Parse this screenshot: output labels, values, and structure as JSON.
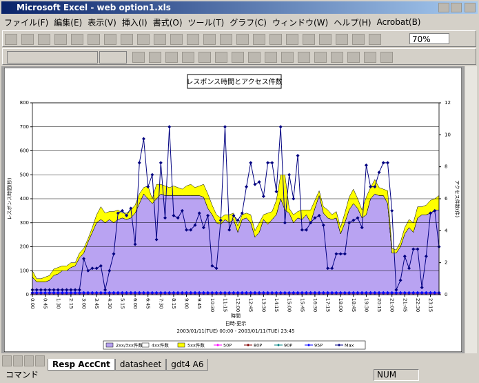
{
  "window": {
    "title": "Microsoft Excel - web option1.xls"
  },
  "menu": [
    "ファイル(F)",
    "編集(E)",
    "表示(V)",
    "挿入(I)",
    "書式(O)",
    "ツール(T)",
    "グラフ(C)",
    "ウィンドウ(W)",
    "ヘルプ(H)",
    "Acrobat(B)"
  ],
  "toolbar": {
    "zoom": "70%"
  },
  "sheet_tabs": [
    "Resp AccCnt",
    "datasheet",
    "gdt4 A6"
  ],
  "status_bar": {
    "mode": "コマンド",
    "num": "NUM"
  },
  "chart_data": {
    "type": "combo",
    "title": "レスポンス時間とアクセス件数",
    "x_label": "時間",
    "subtitle_1": "日時-更示",
    "subtitle_2": "2003/01/11(TUE) 00:00 - 2003/01/11(TUE) 23:45",
    "y_label": "レスポンス時間(秒)",
    "y2_label": "アクセス件数(件)",
    "ylim": [
      0,
      800
    ],
    "yticks": [
      0,
      100,
      200,
      300,
      400,
      500,
      600,
      700,
      800
    ],
    "y2lim": [
      0,
      12
    ],
    "y2ticks": [
      0,
      2,
      4,
      6,
      8,
      10,
      12
    ],
    "grid": true,
    "legend": "bottom",
    "categories": [
      "0:00",
      null,
      null,
      "0:45",
      null,
      null,
      "1:30",
      null,
      null,
      "2:15",
      null,
      null,
      "3:00",
      null,
      null,
      "3:45",
      null,
      null,
      "4:30",
      null,
      null,
      "5:15",
      null,
      null,
      "6:00",
      null,
      null,
      "6:45",
      null,
      null,
      "7:30",
      null,
      null,
      "8:15",
      null,
      null,
      "9:00",
      null,
      null,
      "9:45",
      null,
      null,
      "10:30",
      null,
      null,
      "11:15",
      null,
      null,
      "12:00",
      null,
      null,
      "12:45",
      null,
      null,
      "13:30",
      null,
      null,
      "14:15",
      null,
      null,
      "15:00",
      null,
      null,
      "15:45",
      null,
      null,
      "16:30",
      null,
      null,
      "17:15",
      null,
      null,
      "18:00",
      null,
      null,
      "18:45",
      null,
      null,
      "19:30",
      null,
      null,
      "20:15",
      null,
      null,
      "21:00",
      null,
      null,
      "21:45",
      null,
      null,
      "22:30",
      null,
      null,
      "23:15",
      null,
      null
    ],
    "series": [
      {
        "name": "2xx/3xx件数",
        "type": "area",
        "axis": "y2",
        "color": "#b9a3f2",
        "values": [
          1.1,
          0.8,
          0.8,
          0.8,
          0.9,
          1.2,
          1.3,
          1.5,
          1.5,
          1.7,
          1.8,
          2.3,
          2.6,
          3.3,
          3.9,
          4.5,
          4.7,
          4.5,
          4.7,
          4.5,
          4.7,
          4.8,
          4.7,
          4.8,
          5.1,
          5.7,
          6.3,
          6.0,
          5.7,
          6.0,
          6.3,
          6.2,
          6.2,
          6.2,
          6.2,
          6.2,
          6.2,
          6.2,
          6.2,
          6.2,
          6.1,
          5.4,
          5.0,
          4.5,
          4.4,
          4.7,
          4.5,
          4.7,
          3.9,
          4.7,
          4.8,
          4.5,
          3.6,
          3.9,
          4.7,
          4.4,
          4.7,
          5.0,
          6.0,
          5.3,
          5.1,
          4.5,
          4.8,
          4.7,
          5.0,
          4.5,
          5.4,
          6.2,
          5.1,
          4.8,
          4.7,
          4.8,
          3.8,
          4.5,
          5.3,
          5.7,
          5.4,
          4.8,
          5.0,
          6.0,
          6.3,
          6.2,
          6.2,
          5.7,
          2.6,
          2.6,
          3.0,
          3.8,
          4.2,
          3.9,
          4.8,
          5.0,
          5.0,
          5.1,
          5.3,
          5.3
        ]
      },
      {
        "name": "4xx件数",
        "type": "area",
        "axis": "y2",
        "color": "#ffffff",
        "values": [
          0,
          0,
          0,
          0,
          0,
          0,
          0,
          0,
          0,
          0,
          0,
          0,
          0,
          0,
          0,
          0,
          0,
          0,
          0,
          0,
          0,
          0,
          0,
          0,
          0,
          0,
          0,
          0,
          0,
          0,
          0,
          0,
          0,
          0,
          0,
          0,
          0,
          0,
          0,
          0,
          0,
          0,
          0,
          0,
          0,
          0,
          0,
          0,
          0,
          0,
          0,
          0,
          0,
          0,
          0,
          0,
          0,
          0,
          0,
          0,
          0,
          0,
          0,
          0,
          0,
          0,
          0,
          0,
          0,
          0,
          0,
          0,
          0,
          0,
          0,
          0,
          0,
          0,
          0,
          0,
          0,
          0,
          0,
          0,
          0,
          0,
          0,
          0,
          0,
          0,
          0,
          0,
          0,
          0,
          0,
          0
        ]
      },
      {
        "name": "5xx件数",
        "type": "area",
        "axis": "y2",
        "color": "#ffff00",
        "values": [
          0.4,
          0.2,
          0.2,
          0.3,
          0.3,
          0.4,
          0.4,
          0.3,
          0.3,
          0.3,
          0.2,
          0.3,
          0.3,
          0.2,
          0.3,
          0.5,
          0.8,
          0.6,
          0.5,
          0.7,
          0.6,
          0.3,
          0.4,
          0.5,
          0.5,
          0.6,
          0.4,
          0.8,
          0.3,
          0.9,
          0.6,
          0.6,
          0.5,
          0.6,
          0.5,
          0.4,
          0.6,
          0.7,
          0.5,
          0.6,
          0.8,
          0.9,
          0.6,
          0.5,
          0.4,
          0.3,
          0.5,
          0.4,
          0.4,
          0.3,
          0.3,
          0.5,
          0.4,
          0.6,
          0.3,
          0.7,
          0.5,
          0.9,
          1.5,
          2.2,
          0.3,
          0.5,
          0.4,
          0.6,
          0.3,
          0.8,
          0.5,
          0.3,
          0.4,
          0.5,
          0.3,
          0.4,
          0.4,
          0.6,
          0.8,
          0.9,
          0.6,
          0.5,
          1.1,
          0.7,
          0.9,
          0.5,
          0.4,
          0.8,
          0.3,
          0.2,
          0.3,
          0.4,
          0.5,
          0.6,
          0.7,
          0.5,
          0.6,
          0.8,
          0.7,
          0.9
        ]
      },
      {
        "name": "50P",
        "type": "line",
        "color": "#ff00ff",
        "values": [
          5,
          5,
          5,
          5,
          5,
          5,
          5,
          5,
          5,
          5,
          5,
          5,
          5,
          5,
          5,
          5,
          5,
          5,
          5,
          5,
          5,
          5,
          5,
          5,
          5,
          5,
          5,
          5,
          5,
          5,
          5,
          5,
          5,
          5,
          5,
          5,
          5,
          5,
          5,
          5,
          5,
          5,
          5,
          5,
          5,
          5,
          5,
          5,
          5,
          5,
          5,
          5,
          5,
          5,
          5,
          5,
          5,
          5,
          5,
          5,
          5,
          5,
          5,
          5,
          5,
          5,
          5,
          5,
          5,
          5,
          5,
          5,
          5,
          5,
          5,
          5,
          5,
          5,
          5,
          5,
          5,
          5,
          5,
          5,
          5,
          5,
          5,
          5,
          5,
          5,
          5,
          5,
          5,
          5,
          5,
          5
        ]
      },
      {
        "name": "80P",
        "type": "line",
        "color": "#800000",
        "values": [
          6,
          6,
          6,
          6,
          6,
          6,
          6,
          6,
          6,
          6,
          6,
          6,
          6,
          6,
          6,
          6,
          6,
          6,
          6,
          6,
          6,
          6,
          6,
          6,
          6,
          6,
          6,
          6,
          6,
          6,
          6,
          6,
          6,
          6,
          6,
          6,
          6,
          6,
          6,
          6,
          6,
          6,
          6,
          6,
          6,
          6,
          6,
          6,
          6,
          6,
          6,
          6,
          6,
          6,
          6,
          6,
          6,
          6,
          6,
          6,
          6,
          6,
          6,
          6,
          6,
          6,
          6,
          6,
          6,
          6,
          6,
          6,
          6,
          6,
          6,
          6,
          6,
          6,
          6,
          6,
          6,
          6,
          6,
          6,
          6,
          6,
          6,
          6,
          6,
          6,
          6,
          6,
          6,
          6,
          6,
          6
        ]
      },
      {
        "name": "90P",
        "type": "line",
        "color": "#008080",
        "values": [
          7,
          7,
          7,
          7,
          7,
          7,
          7,
          7,
          7,
          7,
          7,
          7,
          7,
          7,
          7,
          7,
          7,
          7,
          7,
          7,
          7,
          7,
          7,
          7,
          7,
          7,
          7,
          7,
          7,
          7,
          7,
          7,
          7,
          7,
          7,
          7,
          7,
          7,
          7,
          7,
          7,
          7,
          7,
          7,
          7,
          7,
          7,
          7,
          7,
          7,
          7,
          7,
          7,
          7,
          7,
          7,
          7,
          7,
          7,
          7,
          7,
          7,
          7,
          7,
          7,
          7,
          7,
          7,
          7,
          7,
          7,
          7,
          7,
          7,
          7,
          7,
          7,
          7,
          7,
          7,
          7,
          7,
          7,
          7,
          7,
          7,
          7,
          7,
          7,
          7,
          7,
          7,
          7,
          7,
          7,
          7
        ]
      },
      {
        "name": "95P",
        "type": "line",
        "color": "#0000ff",
        "values": [
          8,
          8,
          8,
          8,
          8,
          8,
          8,
          8,
          8,
          8,
          8,
          8,
          8,
          8,
          8,
          8,
          8,
          8,
          8,
          8,
          8,
          8,
          8,
          8,
          8,
          8,
          8,
          8,
          8,
          8,
          8,
          8,
          8,
          8,
          8,
          8,
          8,
          8,
          8,
          8,
          8,
          8,
          8,
          8,
          8,
          8,
          8,
          8,
          8,
          8,
          8,
          8,
          8,
          8,
          8,
          8,
          8,
          8,
          8,
          8,
          8,
          8,
          8,
          8,
          8,
          8,
          8,
          8,
          8,
          8,
          8,
          8,
          8,
          8,
          8,
          8,
          8,
          8,
          8,
          8,
          8,
          8,
          8,
          8,
          8,
          8,
          8,
          8,
          8,
          8,
          8,
          8,
          8,
          8,
          8,
          8
        ]
      },
      {
        "name": "Max",
        "type": "line",
        "color": "#000080",
        "values": [
          20,
          20,
          20,
          20,
          20,
          20,
          20,
          20,
          20,
          20,
          20,
          20,
          150,
          100,
          110,
          110,
          120,
          20,
          100,
          170,
          340,
          350,
          330,
          360,
          210,
          550,
          650,
          450,
          500,
          230,
          550,
          320,
          700,
          330,
          320,
          350,
          270,
          270,
          290,
          340,
          280,
          330,
          120,
          110,
          310,
          700,
          270,
          330,
          310,
          340,
          450,
          550,
          460,
          470,
          410,
          550,
          550,
          430,
          700,
          300,
          500,
          400,
          580,
          270,
          270,
          300,
          320,
          330,
          290,
          110,
          110,
          170,
          170,
          170,
          300,
          310,
          320,
          280,
          540,
          450,
          450,
          510,
          550,
          550,
          350,
          20,
          60,
          160,
          110,
          190,
          190,
          30,
          160,
          340,
          350,
          200
        ]
      }
    ]
  }
}
